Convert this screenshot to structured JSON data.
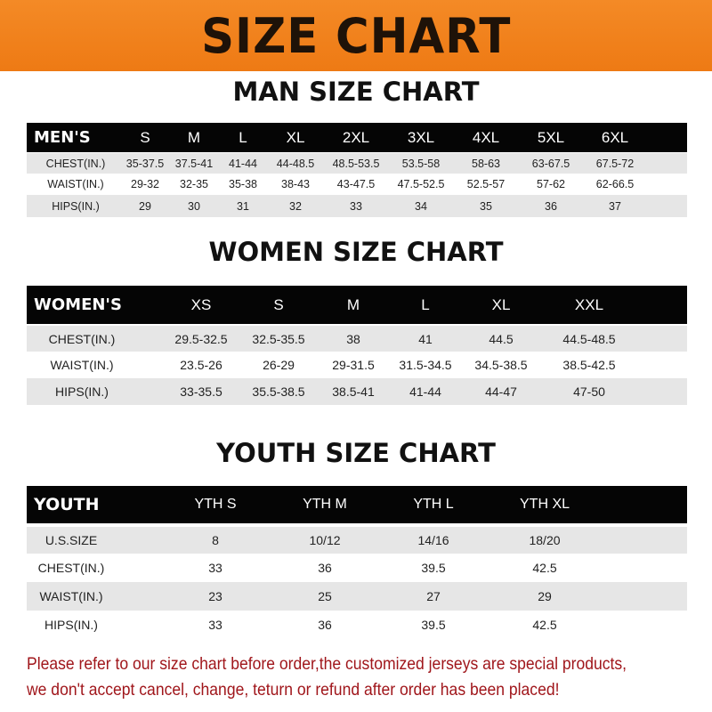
{
  "banner": {
    "title": "SIZE CHART",
    "color": "#f0801a"
  },
  "men": {
    "title": "MAN SIZE CHART",
    "header": [
      "MEN'S",
      "S",
      "M",
      "L",
      "XL",
      "2XL",
      "3XL",
      "4XL",
      "5XL",
      "6XL"
    ],
    "rows": [
      [
        "CHEST(IN.)",
        "35-37.5",
        "37.5-41",
        "41-44",
        "44-48.5",
        "48.5-53.5",
        "53.5-58",
        "58-63",
        "63-67.5",
        "67.5-72"
      ],
      [
        "WAIST(IN.)",
        "29-32",
        "32-35",
        "35-38",
        "38-43",
        "43-47.5",
        "47.5-52.5",
        "52.5-57",
        "57-62",
        "62-66.5"
      ],
      [
        "HIPS(IN.)",
        "29",
        "30",
        "31",
        "32",
        "33",
        "34",
        "35",
        "36",
        "37"
      ]
    ]
  },
  "women": {
    "title": "WOMEN SIZE CHART",
    "header": [
      "WOMEN'S",
      "XS",
      "S",
      "M",
      "L",
      "XL",
      "XXL"
    ],
    "rows": [
      [
        "CHEST(IN.)",
        "29.5-32.5",
        "32.5-35.5",
        "38",
        "41",
        "44.5",
        "44.5-48.5"
      ],
      [
        "WAIST(IN.)",
        "23.5-26",
        "26-29",
        "29-31.5",
        "31.5-34.5",
        "34.5-38.5",
        "38.5-42.5"
      ],
      [
        "HIPS(IN.)",
        "33-35.5",
        "35.5-38.5",
        "38.5-41",
        "41-44",
        "44-47",
        "47-50"
      ]
    ]
  },
  "youth": {
    "title": "YOUTH SIZE CHART",
    "header": [
      "YOUTH",
      "YTH S",
      "YTH M",
      "YTH L",
      "YTH XL"
    ],
    "rows": [
      [
        "U.S.SIZE",
        "8",
        "10/12",
        "14/16",
        "18/20"
      ],
      [
        "CHEST(IN.)",
        "33",
        "36",
        "39.5",
        "42.5"
      ],
      [
        "WAIST(IN.)",
        "23",
        "25",
        "27",
        "29"
      ],
      [
        "HIPS(IN.)",
        "33",
        "36",
        "39.5",
        "42.5"
      ]
    ]
  },
  "notice": {
    "line1": "Please refer to our size chart before order,the customized jerseys are special products,",
    "line2": "we don't accept cancel, change, teturn or refund after order has been placed!",
    "color": "#a0161b"
  }
}
